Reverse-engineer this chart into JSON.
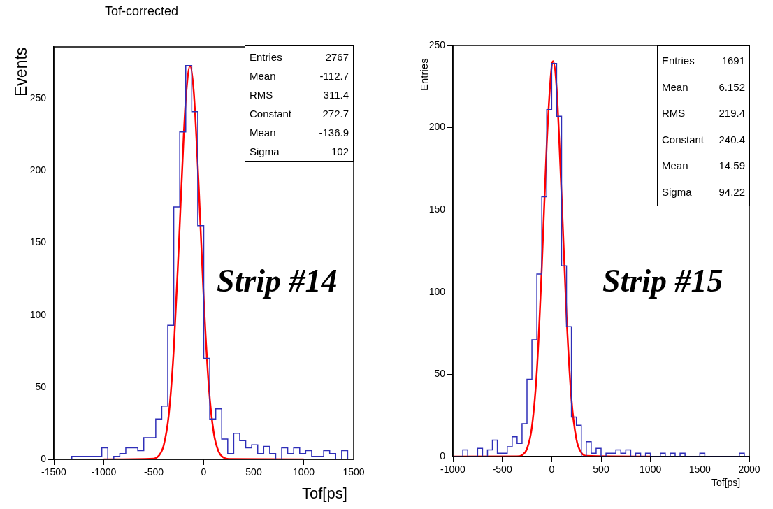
{
  "chart_data": [
    {
      "type": "histogram",
      "title": "Tof-corrected",
      "xlabel": "Tof[ps]",
      "ylabel": "Events",
      "xlim": [
        -1500,
        1500
      ],
      "xticks": [
        -1500,
        -1000,
        -500,
        0,
        500,
        1000,
        1500
      ],
      "ylim": [
        0,
        286
      ],
      "yticks": [
        0,
        50,
        100,
        150,
        200,
        250
      ],
      "grid": false,
      "legend": false,
      "marker": "none",
      "series": [
        {
          "type": "histogram",
          "color": "#2e2eb8",
          "bins": [
            -1500,
            -1440,
            -1380,
            -1320,
            -1260,
            -1200,
            -1140,
            -1080,
            -1020,
            -960,
            -900,
            -840,
            -780,
            -720,
            -660,
            -600,
            -540,
            -480,
            -420,
            -360,
            -300,
            -240,
            -180,
            -120,
            -60,
            0,
            60,
            120,
            180,
            240,
            300,
            360,
            420,
            480,
            540,
            600,
            660,
            720,
            780,
            840,
            900,
            960,
            1020,
            1080,
            1140,
            1200,
            1260,
            1320,
            1380,
            1440,
            1500
          ],
          "values": [
            0,
            0,
            0,
            2,
            2,
            2,
            2,
            2,
            8,
            0,
            2,
            4,
            8,
            8,
            6,
            15,
            15,
            28,
            37,
            93,
            175,
            227,
            273,
            241,
            162,
            70,
            28,
            35,
            14,
            4,
            18,
            13,
            8,
            10,
            4,
            9,
            4,
            0,
            8,
            4,
            8,
            4,
            6,
            2,
            2,
            6,
            4,
            0,
            6,
            0
          ]
        },
        {
          "type": "line",
          "color": "#ff0000",
          "x": [
            -1000,
            -500,
            -450,
            -400,
            -350,
            -300,
            -250,
            -200,
            -175,
            -137,
            -100,
            -50,
            0,
            50,
            100,
            150,
            200,
            250,
            1000
          ],
          "values": [
            0,
            0.5,
            2.5,
            9.8,
            30.8,
            76,
            147,
            225,
            254,
            272.7,
            255,
            189,
            111,
            51,
            18.4,
            5.2,
            1.2,
            0.2,
            0
          ]
        }
      ],
      "annotations": [
        "Entries 2767",
        "Mean -112.7",
        "RMS 311.4",
        "Constant 272.7",
        "Mean -136.9",
        "Sigma 102",
        "Strip #14"
      ]
    },
    {
      "type": "histogram",
      "xlabel": "Tof[ps]",
      "ylabel": "Entries",
      "xlim": [
        -1000,
        2000
      ],
      "xticks": [
        -1000,
        -500,
        0,
        500,
        1000,
        1500,
        2000
      ],
      "ylim": [
        0,
        250
      ],
      "yticks": [
        0,
        50,
        100,
        150,
        200,
        250
      ],
      "grid": false,
      "legend": false,
      "marker": "none",
      "series": [
        {
          "type": "histogram",
          "color": "#2e2eb8",
          "bins": [
            -1000,
            -950,
            -900,
            -850,
            -800,
            -750,
            -700,
            -650,
            -600,
            -550,
            -500,
            -450,
            -400,
            -350,
            -300,
            -250,
            -200,
            -150,
            -100,
            -50,
            0,
            50,
            100,
            150,
            200,
            250,
            300,
            350,
            400,
            450,
            500,
            550,
            600,
            650,
            700,
            750,
            800,
            850,
            900,
            950,
            1000,
            1050,
            1100,
            1150,
            1200,
            1250,
            1300,
            1350,
            1400,
            1450,
            1500,
            1550,
            1600,
            1650,
            1700,
            1750,
            1800,
            1850,
            1900,
            1950,
            2000
          ],
          "values": [
            0,
            0,
            4,
            0,
            0,
            5,
            0,
            4,
            10,
            2,
            2,
            6,
            12,
            8,
            20,
            47,
            71,
            111,
            158,
            211,
            239,
            207,
            116,
            79,
            24,
            19,
            0,
            9,
            2,
            5,
            0,
            2,
            2,
            4,
            2,
            4,
            0,
            2,
            0,
            2,
            0,
            0,
            2,
            0,
            2,
            0,
            2,
            0,
            0,
            0,
            2,
            0,
            0,
            0,
            0,
            0,
            0,
            0,
            2,
            0
          ]
        },
        {
          "type": "line",
          "color": "#ff0000",
          "x": [
            -1000,
            -350,
            -300,
            -250,
            -200,
            -150,
            -100,
            -50,
            0,
            15,
            50,
            100,
            150,
            200,
            250,
            300,
            350,
            1000
          ],
          "values": [
            0,
            0.1,
            0.9,
            4.7,
            18,
            52,
            115,
            190,
            237.5,
            240.4,
            224,
            159,
            86,
            35,
            10.6,
            2.4,
            0.4,
            0
          ]
        }
      ],
      "annotations": [
        "Entries 1691",
        "Mean 6.152",
        "RMS 219.4",
        "Constant 240.4",
        "Mean 14.59",
        "Sigma 94.22",
        "Strip #15"
      ]
    }
  ]
}
